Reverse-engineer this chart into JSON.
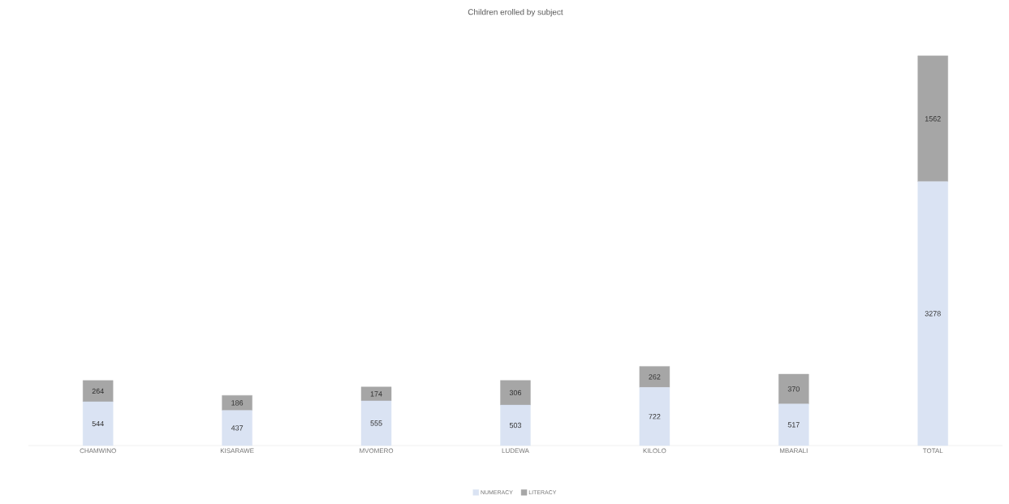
{
  "chart_data": {
    "type": "bar",
    "title": "Children erolled by subject",
    "categories": [
      "CHAMWINO",
      "KISARAWE",
      "MVOMERO",
      "LUDEWA",
      "KILOLO",
      "MBARALI",
      "TOTAL"
    ],
    "series": [
      {
        "name": "NUMERACY",
        "color": "#dae3f3",
        "values": [
          544,
          437,
          555,
          503,
          722,
          517,
          3278
        ]
      },
      {
        "name": "LITERACY",
        "color": "#a6a6a6",
        "values": [
          264,
          186,
          174,
          306,
          262,
          370,
          1562
        ]
      }
    ],
    "stacked": true,
    "data_labels": true,
    "legend": "bottom"
  }
}
